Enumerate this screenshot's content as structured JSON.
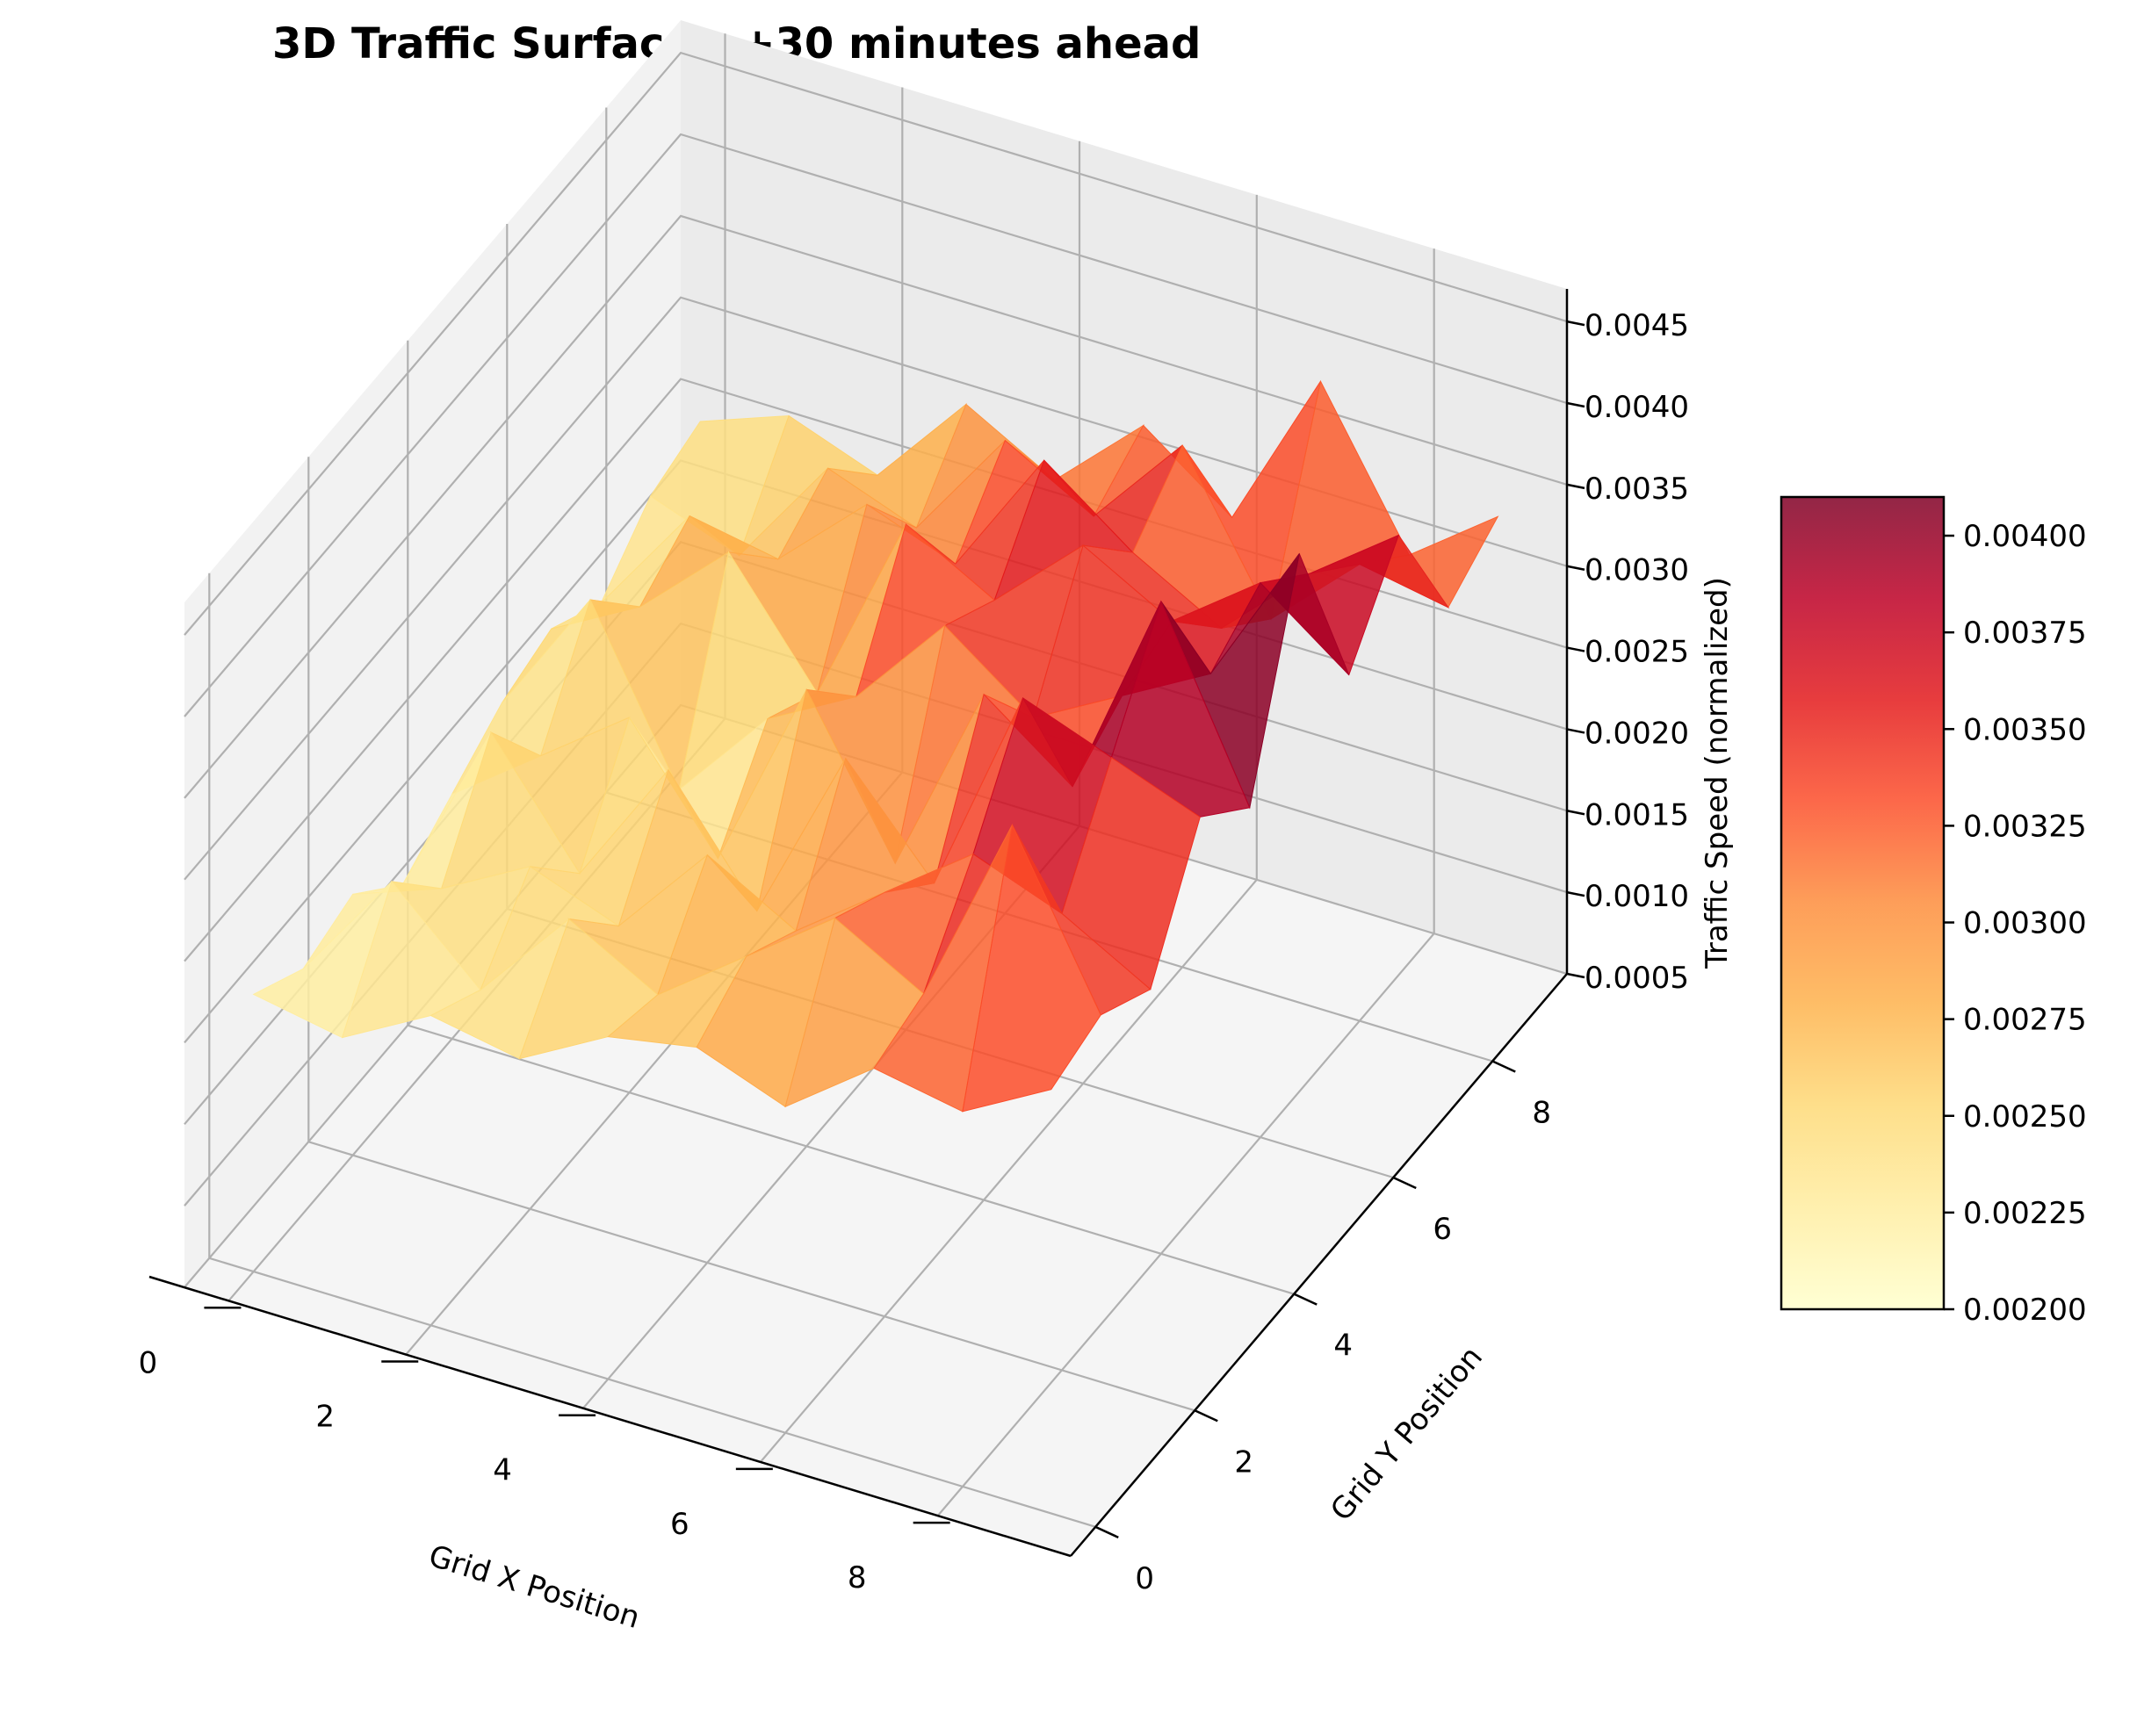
{
  "chart_data": {
    "type": "surface3d",
    "title": "3D Traffic Surface - +30 minutes ahead",
    "xlabel": "Grid X Position",
    "ylabel": "Grid Y Position",
    "zlabel": "Traffic Speed (normalized)",
    "x_ticks": [
      "0",
      "2",
      "4",
      "6",
      "8"
    ],
    "y_ticks": [
      "0",
      "2",
      "4",
      "6",
      "8"
    ],
    "z_ticks": [
      "0.0005",
      "0.0010",
      "0.0015",
      "0.0020",
      "0.0025",
      "0.0030",
      "0.0035",
      "0.0040",
      "0.0045"
    ],
    "x": [
      0,
      1,
      2,
      3,
      4,
      5,
      6,
      7,
      8,
      9
    ],
    "y": [
      0,
      1,
      2,
      3,
      4,
      5,
      6,
      7,
      8,
      9
    ],
    "xlim": [
      -0.5,
      9.5
    ],
    "ylim": [
      -0.5,
      9.5
    ],
    "zlim": [
      0.0005,
      0.0047
    ],
    "z": [
      [
        0.0022,
        0.0021,
        0.0024,
        0.0023,
        0.0026,
        0.0027,
        0.0025,
        0.0029,
        0.0028,
        0.0031
      ],
      [
        0.002,
        0.0027,
        0.0022,
        0.0028,
        0.0025,
        0.0029,
        0.0033,
        0.003,
        0.0042,
        0.0032
      ],
      [
        0.0021,
        0.0023,
        0.0026,
        0.0024,
        0.003,
        0.0027,
        0.0031,
        0.0035,
        0.0033,
        0.003
      ],
      [
        0.0018,
        0.0029,
        0.0022,
        0.003,
        0.0023,
        0.0034,
        0.0028,
        0.0041,
        0.0039,
        0.0037
      ],
      [
        0.002,
        0.0024,
        0.0028,
        0.0021,
        0.0033,
        0.0024,
        0.0036,
        0.0032,
        0.0045,
        0.0034
      ],
      [
        0.0022,
        0.003,
        0.002,
        0.0026,
        0.0029,
        0.0035,
        0.0031,
        0.0034,
        0.0037,
        0.0046
      ],
      [
        0.0023,
        0.0026,
        0.0031,
        0.0024,
        0.0036,
        0.0033,
        0.0038,
        0.0035,
        0.0039,
        0.0035
      ],
      [
        0.0021,
        0.0028,
        0.0027,
        0.0032,
        0.003,
        0.0038,
        0.0034,
        0.0031,
        0.0036,
        0.004
      ],
      [
        0.0024,
        0.0022,
        0.0029,
        0.0027,
        0.0034,
        0.0031,
        0.0037,
        0.0028,
        0.0033,
        0.0032
      ],
      [
        0.0025,
        0.0027,
        0.0025,
        0.0031,
        0.0028,
        0.0033,
        0.0029,
        0.0039,
        0.003,
        0.0034
      ]
    ],
    "colormap": "YlOrRd",
    "colorbar": {
      "min": 0.002,
      "max": 0.0041,
      "ticks": [
        "0.00200",
        "0.00225",
        "0.00250",
        "0.00275",
        "0.00300",
        "0.00325",
        "0.00350",
        "0.00375",
        "0.00400"
      ]
    },
    "grid": true
  },
  "colors": {
    "pane_left": "#f2f2f2",
    "pane_back": "#ebebeb",
    "pane_floor": "#f5f5f5",
    "grid": "#b0b0b0",
    "axis": "#000000"
  }
}
